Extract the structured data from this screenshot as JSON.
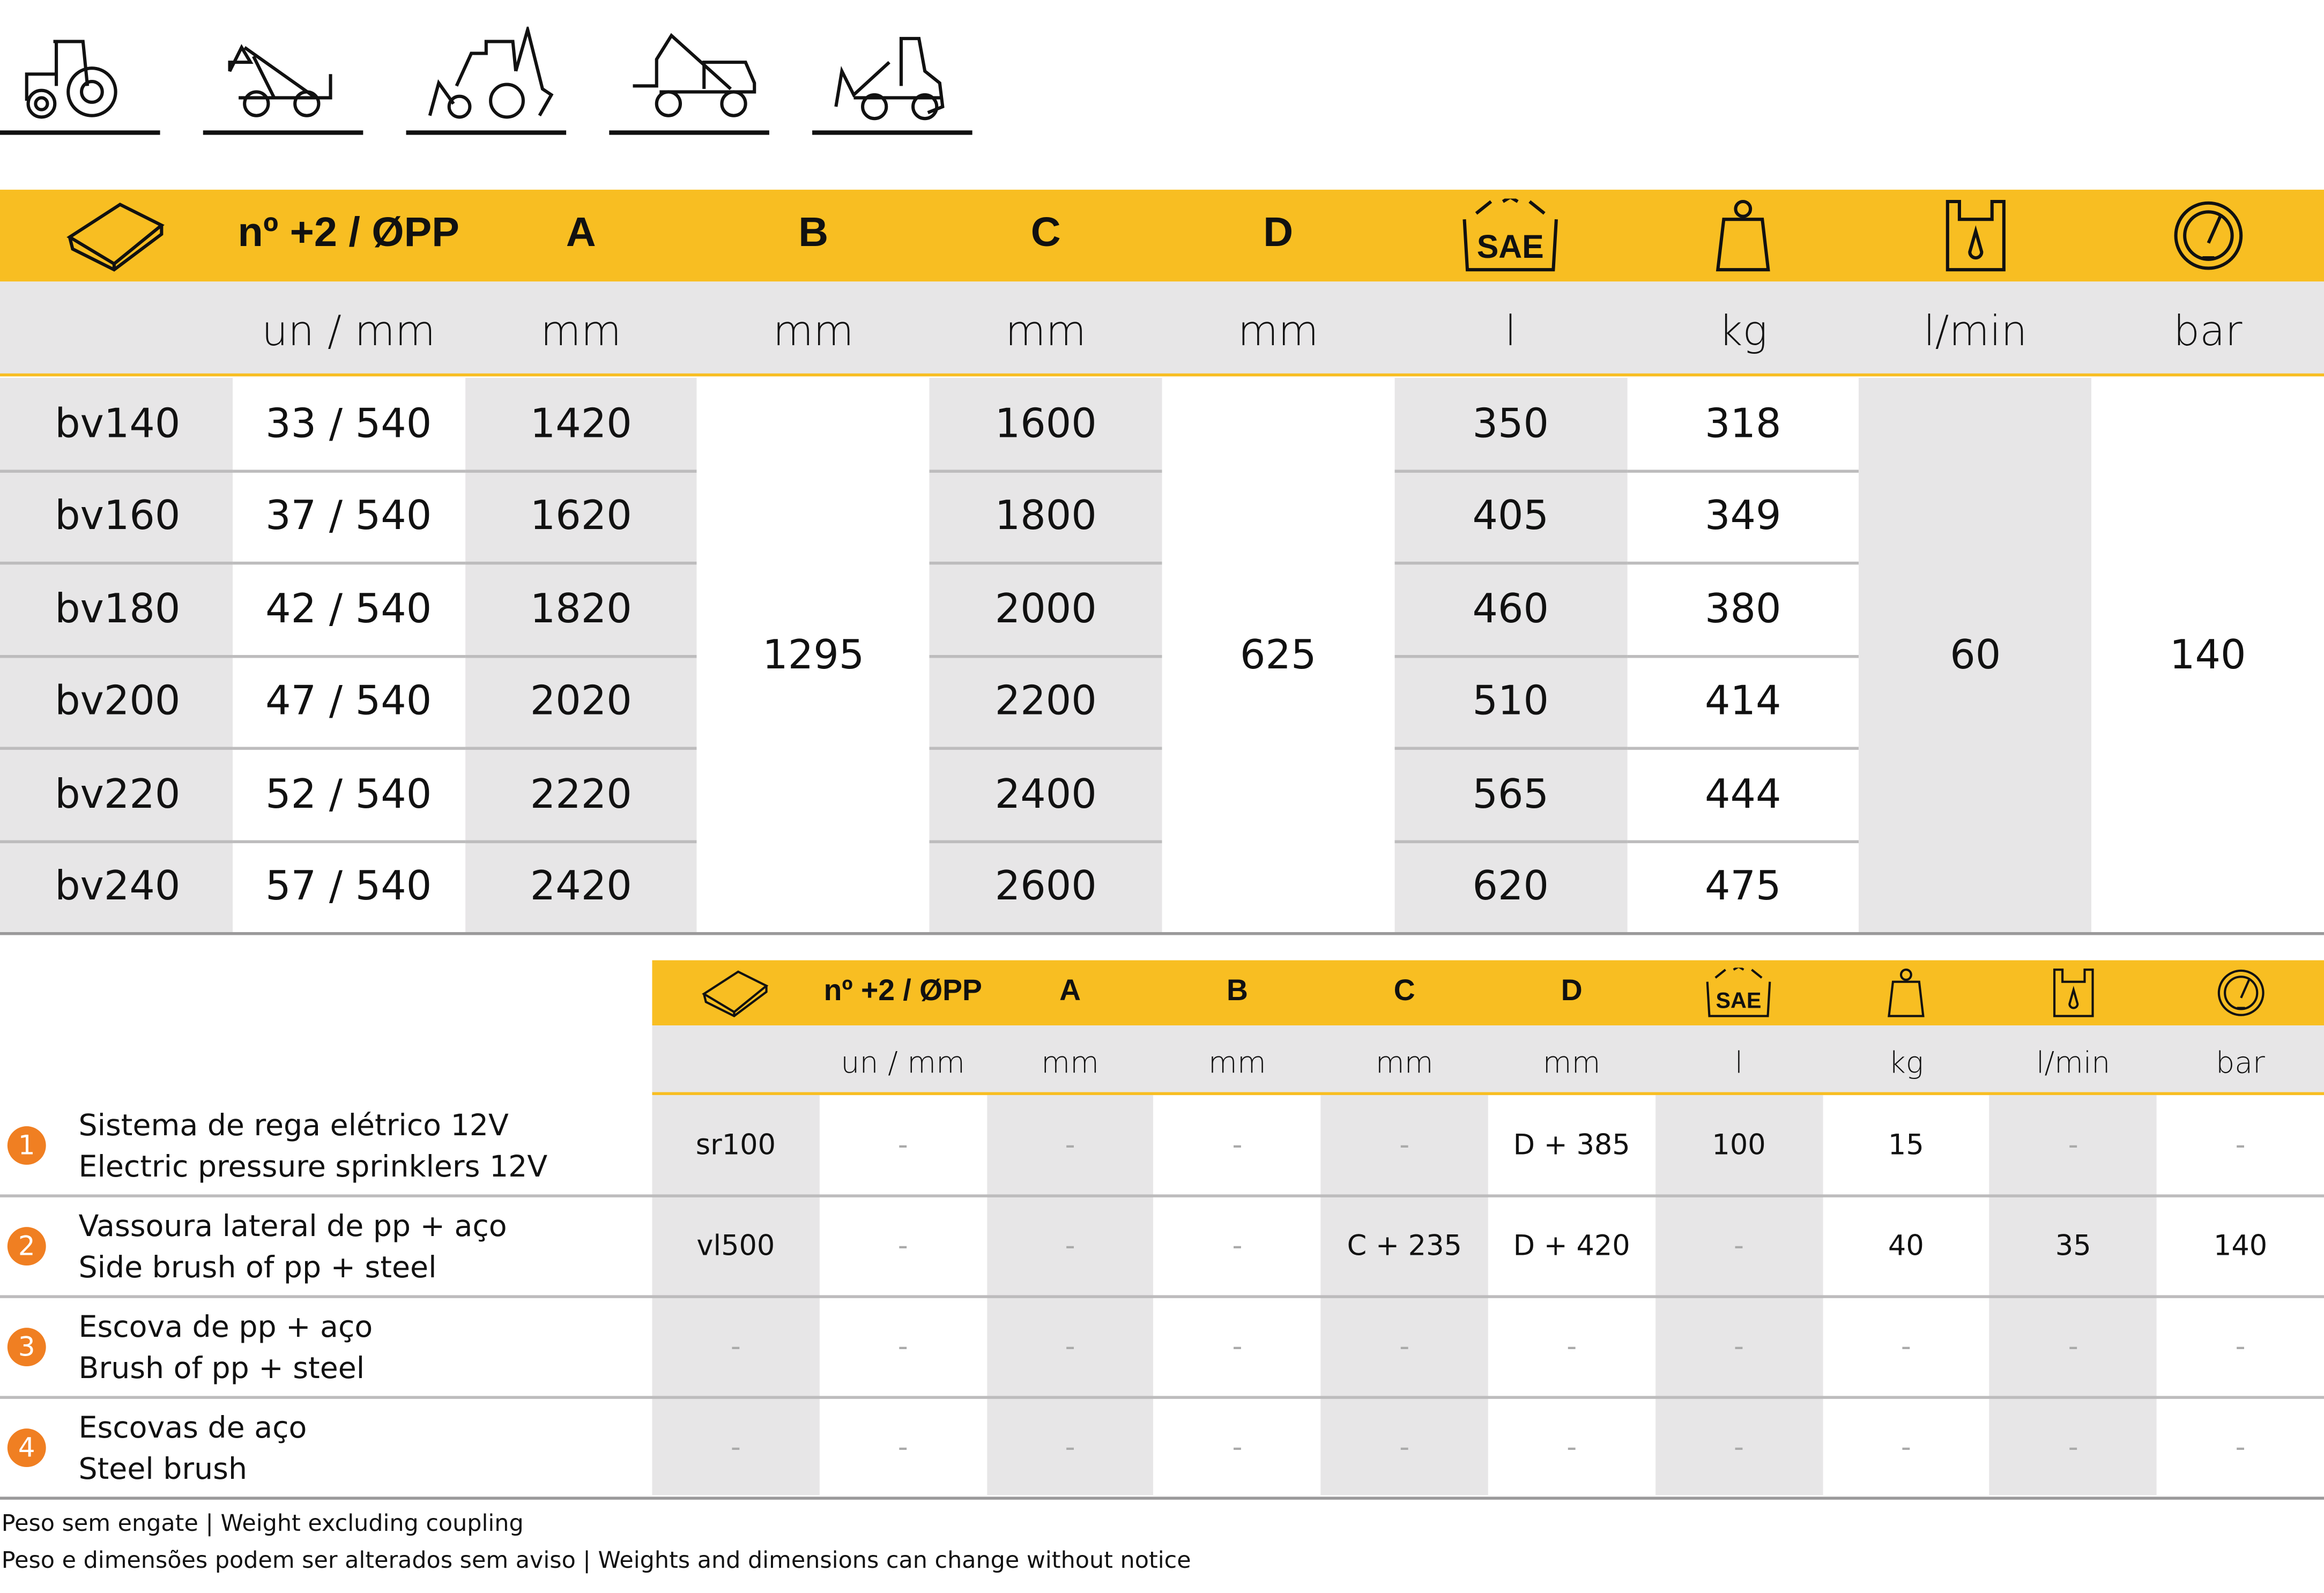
{
  "vehicles": [
    "tractor-icon",
    "telehandler-icon",
    "backhoe-loader-icon",
    "telescopic-loader-icon",
    "wheel-loader-icon"
  ],
  "colors": {
    "header": "#F8BE22",
    "shade": "#E7E6E7",
    "badge": "#F07F22"
  },
  "main_table": {
    "headers": [
      "",
      "nº +2 / ØPP",
      "A",
      "B",
      "C",
      "D",
      "",
      "",
      "",
      ""
    ],
    "header_icons": [
      "broom-icon",
      "",
      "",
      "",
      "",
      "",
      "sae-oil-icon",
      "weight-icon",
      "hydraulic-tank-icon",
      "gauge-icon"
    ],
    "units": [
      "",
      "un / mm",
      "mm",
      "mm",
      "mm",
      "mm",
      "l",
      "kg",
      "l/min",
      "bar"
    ],
    "rows": [
      {
        "model": "bv140",
        "brush": "33 / 540",
        "A": "1420",
        "C": "1600",
        "oil": "350",
        "kg": "318"
      },
      {
        "model": "bv160",
        "brush": "37 / 540",
        "A": "1620",
        "C": "1800",
        "oil": "405",
        "kg": "349"
      },
      {
        "model": "bv180",
        "brush": "42 / 540",
        "A": "1820",
        "C": "2000",
        "oil": "460",
        "kg": "380"
      },
      {
        "model": "bv200",
        "brush": "47 / 540",
        "A": "2020",
        "C": "2200",
        "oil": "510",
        "kg": "414"
      },
      {
        "model": "bv220",
        "brush": "52 / 540",
        "A": "2220",
        "C": "2400",
        "oil": "565",
        "kg": "444"
      },
      {
        "model": "bv240",
        "brush": "57 / 540",
        "A": "2420",
        "C": "2600",
        "oil": "620",
        "kg": "475"
      }
    ],
    "merged": {
      "B": "1295",
      "D": "625",
      "flow": "60",
      "pressure": "140"
    }
  },
  "options_table": {
    "headers": [
      "",
      "nº +2 / ØPP",
      "A",
      "B",
      "C",
      "D",
      "",
      "",
      "",
      ""
    ],
    "units": [
      "",
      "un / mm",
      "mm",
      "mm",
      "mm",
      "mm",
      "l",
      "kg",
      "l/min",
      "bar"
    ],
    "rows": [
      {
        "n": "1",
        "pt": "Sistema de rega elétrico 12V",
        "en": "Electric pressure sprinklers 12V",
        "cells": [
          "sr100",
          "-",
          "-",
          "-",
          "-",
          "D + 385",
          "100",
          "15",
          "-",
          "-"
        ]
      },
      {
        "n": "2",
        "pt": "Vassoura lateral de pp + aço",
        "en": "Side brush of pp + steel",
        "cells": [
          "vl500",
          "-",
          "-",
          "-",
          "C + 235",
          "D + 420",
          "-",
          "40",
          "35",
          "140"
        ]
      },
      {
        "n": "3",
        "pt": "Escova de pp + aço",
        "en": "Brush of pp + steel",
        "cells": [
          "-",
          "-",
          "-",
          "-",
          "-",
          "-",
          "-",
          "-",
          "-",
          "-"
        ]
      },
      {
        "n": "4",
        "pt": "Escovas de aço",
        "en": "Steel brush",
        "cells": [
          "-",
          "-",
          "-",
          "-",
          "-",
          "-",
          "-",
          "-",
          "-",
          "-"
        ]
      }
    ]
  },
  "footer": [
    "Peso sem engate | Weight excluding coupling",
    "Peso e dimensões podem ser alterados sem aviso | Weights and dimensions can change without notice"
  ]
}
